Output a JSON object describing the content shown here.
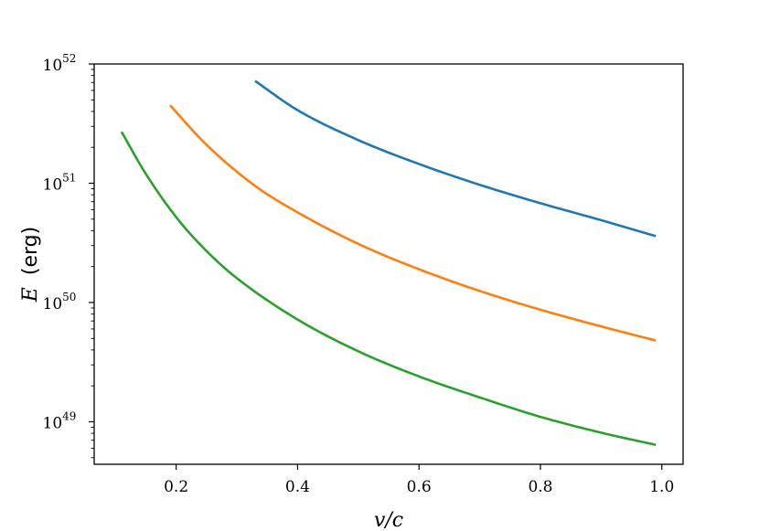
{
  "chart_data": {
    "type": "line",
    "xlabel": "v/c",
    "ylabel": {
      "symbol": "E",
      "unit": "(erg)"
    },
    "xlim": [
      0.065,
      1.035
    ],
    "ylim": [
      4.4e+48,
      1e+52
    ],
    "yscale": "log",
    "grid": false,
    "x_ticks": [
      {
        "value": 0.2,
        "label": "0.2"
      },
      {
        "value": 0.4,
        "label": "0.4"
      },
      {
        "value": 0.6,
        "label": "0.6"
      },
      {
        "value": 0.8,
        "label": "0.8"
      },
      {
        "value": 1.0,
        "label": "1.0"
      }
    ],
    "y_ticks": [
      {
        "value": 1e+49,
        "base": "10",
        "exp": "49"
      },
      {
        "value": 1e+50,
        "base": "10",
        "exp": "50"
      },
      {
        "value": 1e+51,
        "base": "10",
        "exp": "51"
      },
      {
        "value": 1e+52,
        "base": "10",
        "exp": "52"
      }
    ],
    "series": [
      {
        "color": "#1f77b4",
        "points": [
          [
            0.33,
            7.2e+51
          ],
          [
            0.4,
            4.1e+51
          ],
          [
            0.5,
            2.3e+51
          ],
          [
            0.6,
            1.45e+51
          ],
          [
            0.7,
            9.7e+50
          ],
          [
            0.8,
            6.8e+50
          ],
          [
            0.9,
            4.9e+50
          ],
          [
            0.99,
            3.6e+50
          ]
        ]
      },
      {
        "color": "#ff7f0e",
        "points": [
          [
            0.19,
            4.5e+51
          ],
          [
            0.25,
            2.1e+51
          ],
          [
            0.33,
            9.5e+50
          ],
          [
            0.4,
            5.7e+50
          ],
          [
            0.5,
            3.1e+50
          ],
          [
            0.6,
            1.9e+50
          ],
          [
            0.7,
            1.25e+50
          ],
          [
            0.8,
            8.7e+49
          ],
          [
            0.9,
            6.3e+49
          ],
          [
            0.99,
            4.8e+49
          ]
        ]
      },
      {
        "color": "#2ca02c",
        "points": [
          [
            0.11,
            2.7e+51
          ],
          [
            0.15,
            1.2e+51
          ],
          [
            0.2,
            5.2e+50
          ],
          [
            0.25,
            2.7e+50
          ],
          [
            0.3,
            1.6e+50
          ],
          [
            0.4,
            7.2e+49
          ],
          [
            0.5,
            3.9e+49
          ],
          [
            0.6,
            2.4e+49
          ],
          [
            0.7,
            1.6e+49
          ],
          [
            0.8,
            1.1e+49
          ],
          [
            0.9,
            8.1e+48
          ],
          [
            0.99,
            6.4e+48
          ]
        ]
      }
    ]
  }
}
